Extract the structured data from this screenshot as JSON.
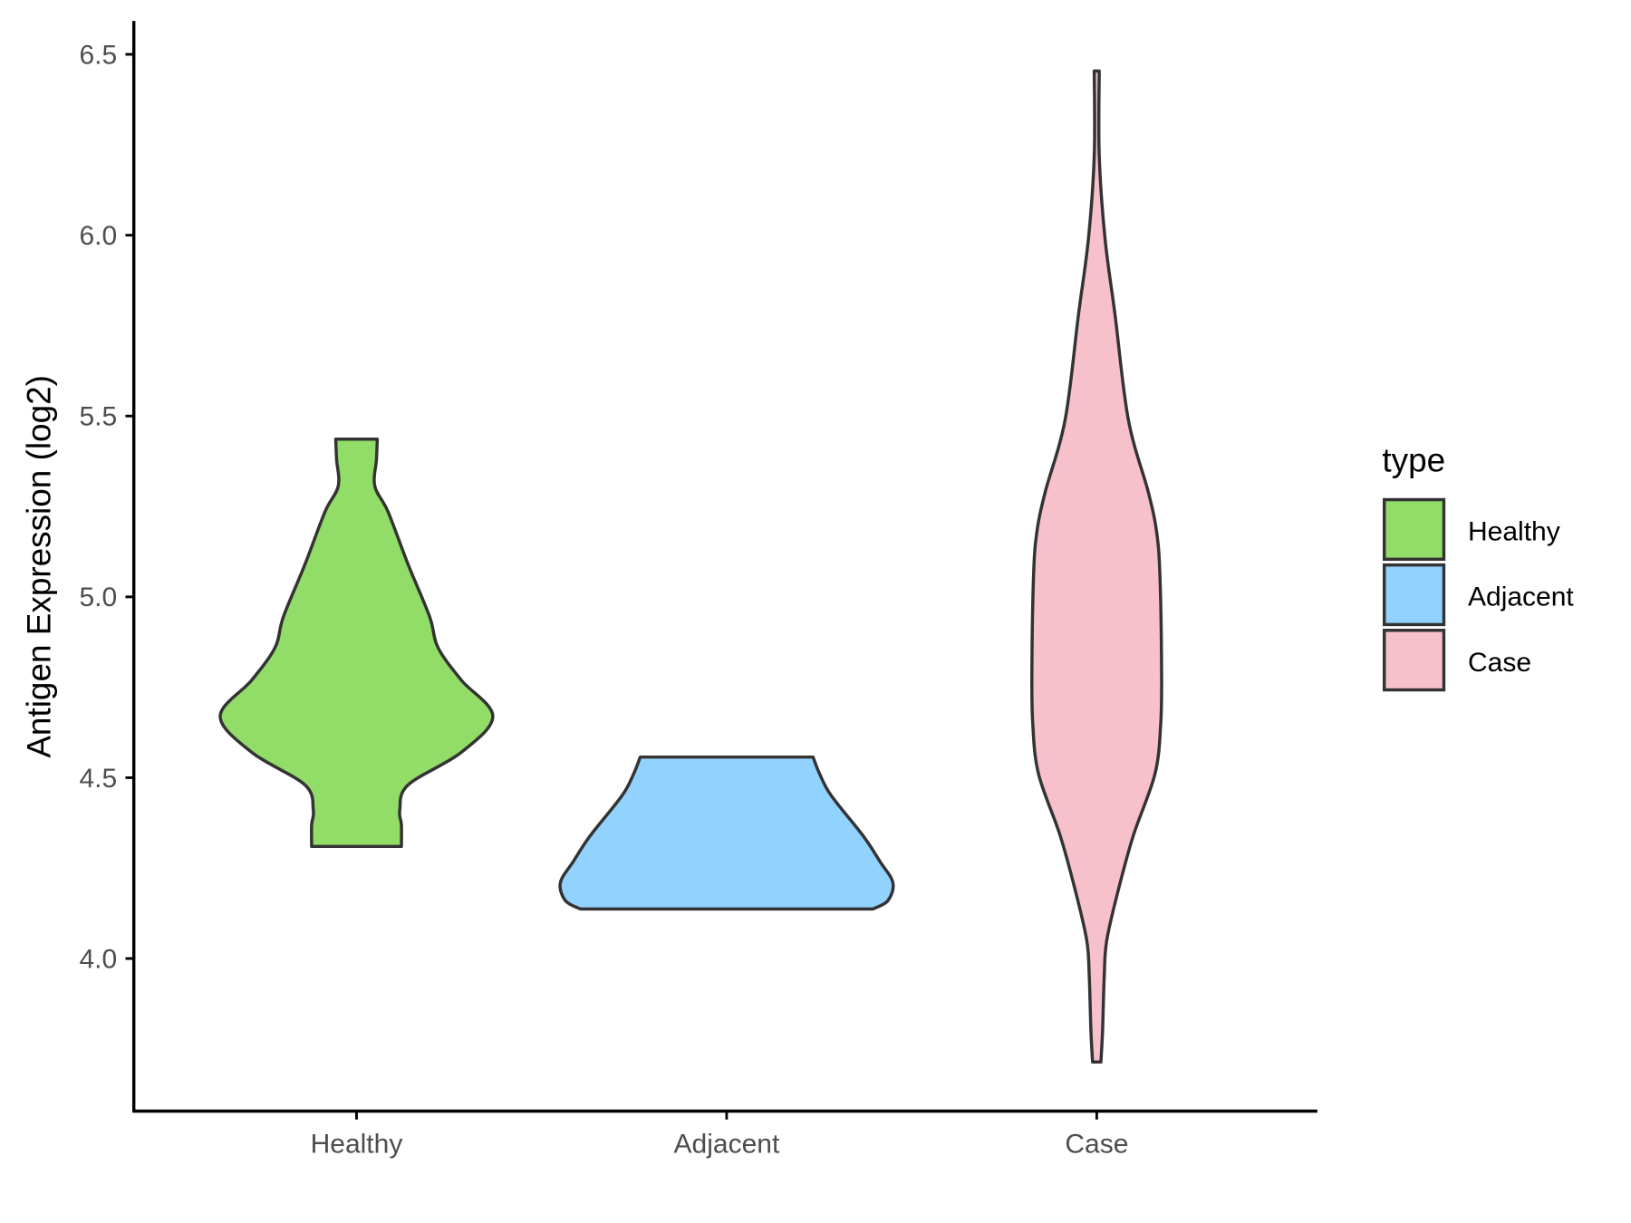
{
  "chart_data": {
    "type": "violin",
    "title": "",
    "xlabel": "",
    "ylabel": "Antigen Expression (log2)",
    "ylim": [
      3.62,
      6.59
    ],
    "yticks": [
      4.0,
      4.5,
      5.0,
      5.5,
      6.0,
      6.5
    ],
    "ytick_labels": [
      "4.0",
      "4.5",
      "5.0",
      "5.5",
      "6.0",
      "6.5"
    ],
    "categories": [
      "Healthy",
      "Adjacent",
      "Case"
    ],
    "grid": false,
    "legend": {
      "title": "type",
      "placement": "right",
      "entries": [
        "Healthy",
        "Adjacent",
        "Case"
      ]
    },
    "series": [
      {
        "name": "Healthy",
        "color": "#92DC68",
        "min": 4.31,
        "max": 5.436,
        "profile": [
          [
            4.31,
            0.27
          ],
          [
            4.37,
            0.27
          ],
          [
            4.41,
            0.26
          ],
          [
            4.48,
            0.31
          ],
          [
            4.57,
            0.63
          ],
          [
            4.67,
            0.82
          ],
          [
            4.77,
            0.63
          ],
          [
            4.86,
            0.49
          ],
          [
            4.945,
            0.44
          ],
          [
            5.09,
            0.31
          ],
          [
            5.235,
            0.19
          ],
          [
            5.306,
            0.11
          ],
          [
            5.38,
            0.12
          ],
          [
            5.436,
            0.125
          ]
        ]
      },
      {
        "name": "Adjacent",
        "color": "#92D2FE",
        "min": 4.137,
        "max": 4.557,
        "profile": [
          [
            4.137,
            0.88
          ],
          [
            4.16,
            0.97
          ],
          [
            4.21,
            1.0
          ],
          [
            4.27,
            0.92
          ],
          [
            4.34,
            0.82
          ],
          [
            4.45,
            0.63
          ],
          [
            4.51,
            0.56
          ],
          [
            4.557,
            0.52
          ]
        ]
      },
      {
        "name": "Case",
        "color": "#F7C1CB",
        "min": 3.714,
        "max": 6.454,
        "profile": [
          [
            3.714,
            0.025
          ],
          [
            3.8,
            0.035
          ],
          [
            3.95,
            0.045
          ],
          [
            4.05,
            0.06
          ],
          [
            4.19,
            0.13
          ],
          [
            4.34,
            0.22
          ],
          [
            4.51,
            0.35
          ],
          [
            4.65,
            0.385
          ],
          [
            4.8,
            0.39
          ],
          [
            5.06,
            0.38
          ],
          [
            5.18,
            0.36
          ],
          [
            5.29,
            0.31
          ],
          [
            5.49,
            0.19
          ],
          [
            5.78,
            0.11
          ],
          [
            5.99,
            0.05
          ],
          [
            6.22,
            0.015
          ],
          [
            6.454,
            0.015
          ]
        ]
      }
    ]
  }
}
